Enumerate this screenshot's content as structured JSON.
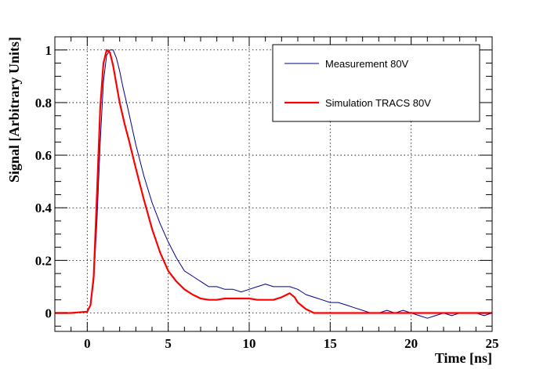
{
  "chart_data": {
    "type": "line",
    "xlabel": "Time [ns]",
    "ylabel": "Signal [Arbitrary Units]",
    "xlim": [
      -2,
      25
    ],
    "ylim": [
      -0.07,
      1.05
    ],
    "x_ticks": [
      0,
      5,
      10,
      15,
      20,
      25
    ],
    "y_ticks": [
      0,
      0.2,
      0.4,
      0.6,
      0.8,
      1
    ],
    "y_tick_labels": [
      "0",
      "0.2",
      "0.4",
      "0.6",
      "0.8",
      "1"
    ],
    "grid": true,
    "legend_position": "top-right",
    "series": [
      {
        "name": "Measurement 80V",
        "color": "#00008b",
        "points": [
          [
            -2,
            0
          ],
          [
            -1,
            0
          ],
          [
            0,
            0.005
          ],
          [
            0.2,
            0.03
          ],
          [
            0.4,
            0.12
          ],
          [
            0.6,
            0.35
          ],
          [
            0.8,
            0.65
          ],
          [
            1.0,
            0.88
          ],
          [
            1.2,
            0.98
          ],
          [
            1.4,
            1.0
          ],
          [
            1.6,
            1.0
          ],
          [
            1.8,
            0.97
          ],
          [
            2.0,
            0.92
          ],
          [
            2.2,
            0.86
          ],
          [
            2.5,
            0.78
          ],
          [
            3.0,
            0.64
          ],
          [
            3.5,
            0.52
          ],
          [
            4.0,
            0.42
          ],
          [
            4.5,
            0.34
          ],
          [
            5.0,
            0.27
          ],
          [
            5.5,
            0.21
          ],
          [
            6.0,
            0.16
          ],
          [
            6.5,
            0.14
          ],
          [
            7.0,
            0.12
          ],
          [
            7.5,
            0.1
          ],
          [
            8.0,
            0.1
          ],
          [
            8.5,
            0.09
          ],
          [
            9.0,
            0.09
          ],
          [
            9.5,
            0.08
          ],
          [
            10.0,
            0.09
          ],
          [
            10.5,
            0.1
          ],
          [
            11.0,
            0.11
          ],
          [
            11.5,
            0.1
          ],
          [
            12.0,
            0.1
          ],
          [
            12.5,
            0.1
          ],
          [
            13.0,
            0.09
          ],
          [
            13.5,
            0.07
          ],
          [
            14.0,
            0.06
          ],
          [
            14.5,
            0.05
          ],
          [
            15.0,
            0.04
          ],
          [
            15.5,
            0.04
          ],
          [
            16.0,
            0.03
          ],
          [
            16.5,
            0.02
          ],
          [
            17.0,
            0.01
          ],
          [
            17.5,
            0.0
          ],
          [
            18.0,
            0.0
          ],
          [
            18.5,
            0.01
          ],
          [
            19.0,
            0.0
          ],
          [
            19.5,
            0.01
          ],
          [
            20.0,
            0.0
          ],
          [
            20.5,
            -0.01
          ],
          [
            21.0,
            -0.02
          ],
          [
            21.5,
            -0.01
          ],
          [
            22.0,
            0.0
          ],
          [
            22.5,
            -0.01
          ],
          [
            23.0,
            0.0
          ],
          [
            23.5,
            0.0
          ],
          [
            24.0,
            0.0
          ],
          [
            24.5,
            -0.01
          ],
          [
            25.0,
            0.0
          ]
        ]
      },
      {
        "name": "Simulation TRACS 80V",
        "color": "#ff0000",
        "points": [
          [
            -2,
            0
          ],
          [
            -1,
            0
          ],
          [
            0,
            0.005
          ],
          [
            0.2,
            0.03
          ],
          [
            0.4,
            0.14
          ],
          [
            0.6,
            0.45
          ],
          [
            0.8,
            0.78
          ],
          [
            1.0,
            0.95
          ],
          [
            1.2,
            1.0
          ],
          [
            1.4,
            0.99
          ],
          [
            1.6,
            0.94
          ],
          [
            1.8,
            0.87
          ],
          [
            2.0,
            0.8
          ],
          [
            2.3,
            0.72
          ],
          [
            2.6,
            0.65
          ],
          [
            3.0,
            0.55
          ],
          [
            3.5,
            0.43
          ],
          [
            4.0,
            0.32
          ],
          [
            4.5,
            0.23
          ],
          [
            5.0,
            0.16
          ],
          [
            5.5,
            0.12
          ],
          [
            6.0,
            0.09
          ],
          [
            6.5,
            0.07
          ],
          [
            7.0,
            0.055
          ],
          [
            7.5,
            0.05
          ],
          [
            8.0,
            0.05
          ],
          [
            8.5,
            0.055
          ],
          [
            9.0,
            0.055
          ],
          [
            9.5,
            0.055
          ],
          [
            10.0,
            0.055
          ],
          [
            10.5,
            0.05
          ],
          [
            11.0,
            0.05
          ],
          [
            11.5,
            0.05
          ],
          [
            12.0,
            0.06
          ],
          [
            12.5,
            0.075
          ],
          [
            12.8,
            0.06
          ],
          [
            13.0,
            0.04
          ],
          [
            13.5,
            0.015
          ],
          [
            14.0,
            0.0
          ],
          [
            15.0,
            0.0
          ],
          [
            20.0,
            0.0
          ],
          [
            25.0,
            0.0
          ]
        ]
      }
    ]
  }
}
